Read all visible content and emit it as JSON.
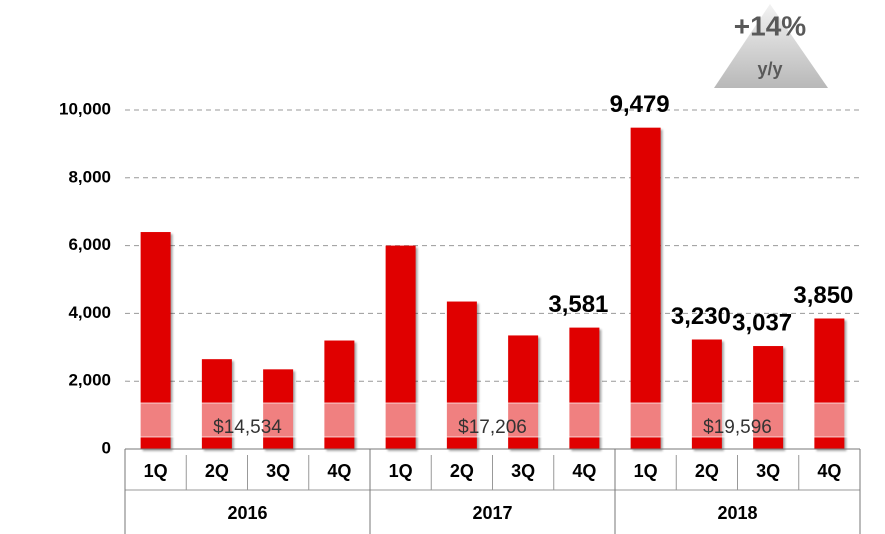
{
  "chart_data": {
    "type": "bar",
    "categories": [
      "1Q",
      "2Q",
      "3Q",
      "4Q",
      "1Q",
      "2Q",
      "3Q",
      "4Q",
      "1Q",
      "2Q",
      "3Q",
      "4Q"
    ],
    "values": [
      6400,
      2650,
      2350,
      3200,
      6000,
      4350,
      3350,
      3581,
      9479,
      3230,
      3037,
      3850
    ],
    "value_labels": [
      null,
      null,
      null,
      null,
      null,
      null,
      null,
      "3,581",
      "9,479",
      "3,230",
      "3,037",
      "3,850"
    ],
    "color": "#e00000",
    "groups": [
      {
        "label": "2016",
        "total": "$14,534"
      },
      {
        "label": "2017",
        "total": "$17,206"
      },
      {
        "label": "2018",
        "total": "$19,596"
      }
    ],
    "badge": {
      "change": "+14%",
      "basis": "y/y"
    },
    "ylim": [
      0,
      10000
    ],
    "yticks": [
      0,
      {
        "value": 2000,
        "label": "2,000"
      },
      {
        "value": 4000,
        "label": "4,000"
      },
      {
        "value": 6000,
        "label": "6,000"
      },
      {
        "value": 8000,
        "label": "8,000"
      },
      {
        "value": 10000,
        "label": "10,000"
      }
    ],
    "grid": true
  }
}
